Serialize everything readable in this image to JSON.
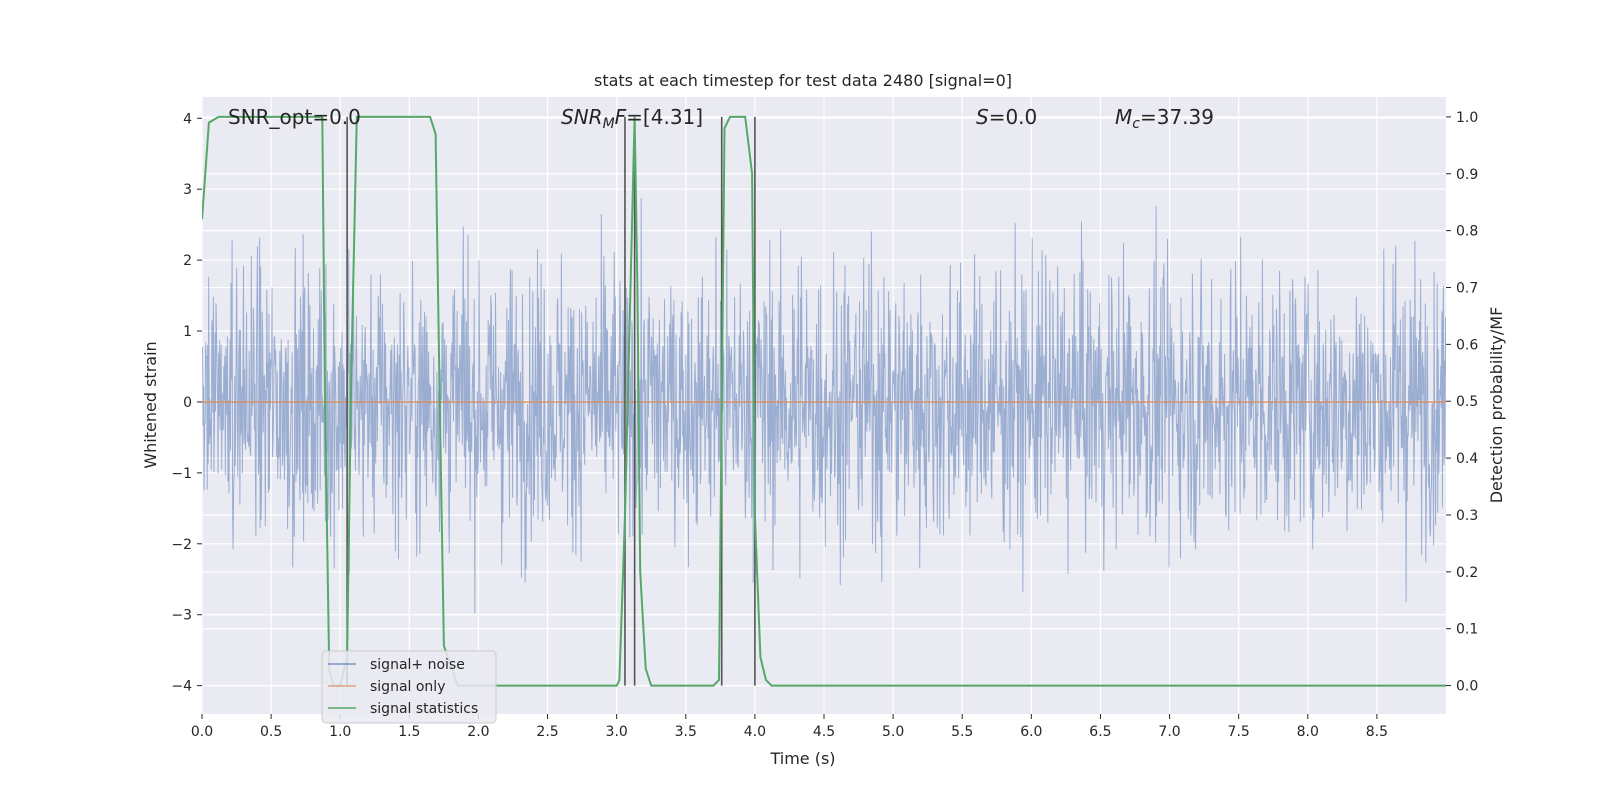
{
  "chart_data": {
    "type": "line",
    "title": "stats at each timestep for test data 2480 [signal=0]",
    "xlabel": "Time (s)",
    "ylabel_left": "Whitened strain",
    "ylabel_right": "Detection probability/MF",
    "xlim": [
      0.0,
      9.0
    ],
    "ylim_left": [
      -4.4,
      4.3
    ],
    "ylim_right": [
      -0.05,
      1.035
    ],
    "x_ticks": [
      0.0,
      0.5,
      1.0,
      1.5,
      2.0,
      2.5,
      3.0,
      3.5,
      4.0,
      4.5,
      5.0,
      5.5,
      6.0,
      6.5,
      7.0,
      7.5,
      8.0,
      8.5
    ],
    "x_tick_labels": [
      "0.0",
      "0.5",
      "1.0",
      "1.5",
      "2.0",
      "2.5",
      "3.0",
      "3.5",
      "4.0",
      "4.5",
      "5.0",
      "5.5",
      "6.0",
      "6.5",
      "7.0",
      "7.5",
      "8.0",
      "8.5"
    ],
    "y_left_ticks": [
      4,
      3,
      2,
      1,
      0,
      -1,
      -2,
      -3,
      -4
    ],
    "y_left_tick_labels": [
      "4",
      "3",
      "2",
      "1",
      "0",
      "−1",
      "−2",
      "−3",
      "−4"
    ],
    "y_right_ticks": [
      1.0,
      0.9,
      0.8,
      0.7,
      0.6,
      0.5,
      0.4,
      0.3,
      0.2,
      0.1,
      0.0
    ],
    "y_right_tick_labels": [
      "1.0",
      "0.9",
      "0.8",
      "0.7",
      "0.6",
      "0.5",
      "0.4",
      "0.3",
      "0.2",
      "0.1",
      "0.0"
    ],
    "grid": true,
    "legend_placement": "lower-left",
    "colors": {
      "background": "#eaeaf2",
      "noise": "#4c72b0",
      "signal": "#dd8452",
      "stats": "#55a868",
      "vlines": "#555555",
      "grid": "#ffffff"
    },
    "annotations": [
      {
        "label": "SNR_opt=0.0",
        "x": 0.18
      },
      {
        "label": "SNR_MF=[4.31]",
        "x": 2.6
      },
      {
        "label": "S=0.0",
        "x": 5.6
      },
      {
        "label": "M_c=37.39",
        "x": 6.6
      }
    ],
    "annotation_text": {
      "snr_opt": "SNR_opt=0.0",
      "snr_mf_main": "SNR",
      "snr_mf_sub": "M",
      "snr_mf_rest_it": "F",
      "snr_mf_value": "=[4.31]",
      "s_it": "S",
      "s_value": "=0.0",
      "mc_main": "M",
      "mc_sub": "c",
      "mc_value": "=37.39"
    },
    "series": [
      {
        "name": "signal+ noise",
        "kind": "noise",
        "amplitude_typical": 2.0,
        "amplitude_max": 3.8
      },
      {
        "name": "signal only",
        "kind": "flat",
        "value": 0.0
      },
      {
        "name": "signal statistics",
        "kind": "probability",
        "axis": "right",
        "x": [
          0.0,
          0.05,
          0.12,
          0.87,
          0.89,
          0.92,
          0.95,
          1.0,
          1.05,
          1.08,
          1.12,
          1.65,
          1.69,
          1.72,
          1.75,
          1.85,
          2.0,
          2.5,
          3.0,
          3.02,
          3.06,
          3.1,
          3.13,
          3.15,
          3.17,
          3.21,
          3.25,
          3.7,
          3.74,
          3.78,
          3.82,
          3.87,
          3.93,
          3.98,
          4.0,
          4.04,
          4.08,
          4.12,
          4.5,
          6.0,
          6.9,
          7.0,
          7.5,
          8.5,
          9.0
        ],
        "y": [
          0.82,
          0.99,
          1.0,
          1.0,
          0.5,
          0.03,
          0.0,
          0.0,
          0.05,
          0.55,
          1.0,
          1.0,
          0.97,
          0.5,
          0.07,
          0.0,
          0.0,
          0.0,
          0.0,
          0.01,
          0.3,
          0.7,
          1.0,
          0.7,
          0.2,
          0.03,
          0.0,
          0.0,
          0.01,
          0.98,
          1.0,
          1.0,
          1.0,
          0.9,
          0.3,
          0.05,
          0.01,
          0.0,
          0.0,
          0.0,
          0.0,
          0.0,
          0.0,
          0.0,
          0.0
        ]
      }
    ],
    "vertical_lines_x": [
      1.05,
      3.06,
      3.13,
      3.76,
      4.0
    ],
    "legend": [
      {
        "label": "signal+ noise",
        "color_key": "noise"
      },
      {
        "label": "signal only",
        "color_key": "signal"
      },
      {
        "label": "signal statistics",
        "color_key": "stats"
      }
    ]
  }
}
